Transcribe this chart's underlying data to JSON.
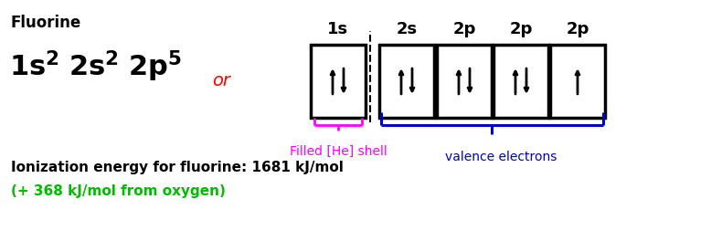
{
  "title": "Fluorine",
  "config_latex": "$\\mathbf{1s^2\\ 2s^2\\ 2p^5}$",
  "or_text": "or",
  "box_labels": [
    "1s",
    "2s",
    "2p",
    "2p",
    "2p"
  ],
  "box_electrons": [
    2,
    2,
    2,
    2,
    1
  ],
  "filled_he_text": "Filled [He] shell",
  "valence_text": "valence electrons",
  "ionization_text": "Ionization energy for fluorine: 1681 kJ/mol",
  "oxygen_text": "(+ 368 kJ/mol from oxygen)",
  "bg_color": "#ffffff",
  "text_color": "#000000",
  "or_color": "#ff0000",
  "he_color": "#ff00ff",
  "valence_color": "#0000cd",
  "oxygen_color": "#00bb00"
}
